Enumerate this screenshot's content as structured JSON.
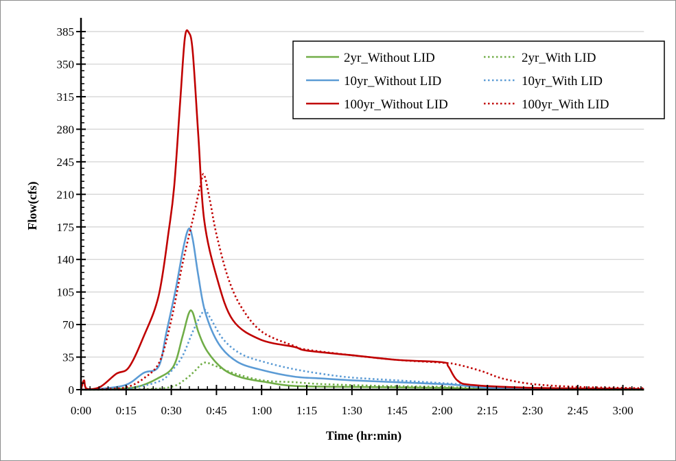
{
  "chart_data": {
    "type": "line",
    "title": "",
    "xlabel": "Time (hr:min)",
    "ylabel": "Flow(cfs)",
    "x_unit": "minutes",
    "xlim": [
      0,
      187
    ],
    "ylim": [
      0,
      385
    ],
    "x_ticks": [
      0,
      15,
      30,
      45,
      60,
      75,
      90,
      105,
      120,
      135,
      150,
      165,
      180
    ],
    "x_tick_labels": [
      "0:00",
      "0:15",
      "0:30",
      "0:45",
      "1:00",
      "1:15",
      "1:30",
      "1:45",
      "2:00",
      "2:15",
      "2:30",
      "2:45",
      "3:00"
    ],
    "y_ticks": [
      0,
      35,
      70,
      105,
      140,
      175,
      210,
      245,
      280,
      315,
      350,
      385
    ],
    "y_tick_labels": [
      "0",
      "35",
      "70",
      "105",
      "140",
      "175",
      "210",
      "245",
      "280",
      "315",
      "350",
      "385"
    ],
    "grid": "horizontal",
    "legend_placement": "top-right",
    "series": [
      {
        "name": "2yr_Without LID",
        "color": "#70ad47",
        "style": "solid",
        "points": [
          [
            0,
            0
          ],
          [
            10,
            0.5
          ],
          [
            18.6,
            3
          ],
          [
            25.4,
            12
          ],
          [
            30.7,
            25
          ],
          [
            33.7,
            57
          ],
          [
            35.8,
            82
          ],
          [
            37.1,
            83
          ],
          [
            39,
            62
          ],
          [
            42,
            41
          ],
          [
            47.3,
            22
          ],
          [
            53.4,
            13
          ],
          [
            61.7,
            8
          ],
          [
            70.8,
            4
          ],
          [
            90,
            3
          ],
          [
            120,
            2
          ],
          [
            130,
            1
          ],
          [
            150,
            0.3
          ],
          [
            187,
            0
          ]
        ]
      },
      {
        "name": "2yr_With LID",
        "color": "#70ad47",
        "style": "dotted",
        "points": [
          [
            0,
            0
          ],
          [
            20,
            0.5
          ],
          [
            30,
            3
          ],
          [
            35,
            12
          ],
          [
            38.1,
            21
          ],
          [
            40.9,
            29
          ],
          [
            44.3,
            26
          ],
          [
            50.4,
            18
          ],
          [
            60.2,
            10
          ],
          [
            70.8,
            8
          ],
          [
            80,
            6
          ],
          [
            100,
            4
          ],
          [
            120,
            3
          ],
          [
            135,
            1
          ],
          [
            150,
            0.3
          ],
          [
            187,
            0
          ]
        ]
      },
      {
        "name": "10yr_Without LID",
        "color": "#5b9bd5",
        "style": "solid",
        "points": [
          [
            0,
            0
          ],
          [
            5,
            0.5
          ],
          [
            14.8,
            5
          ],
          [
            20.8,
            18
          ],
          [
            25.8,
            25
          ],
          [
            28.4,
            62
          ],
          [
            31.4,
            107
          ],
          [
            34.1,
            154
          ],
          [
            35.8,
            173
          ],
          [
            37.1,
            162
          ],
          [
            39,
            122
          ],
          [
            41.3,
            83
          ],
          [
            45.8,
            49
          ],
          [
            51.9,
            30
          ],
          [
            60.2,
            21
          ],
          [
            70.8,
            14
          ],
          [
            80,
            12
          ],
          [
            90,
            10
          ],
          [
            105,
            8
          ],
          [
            120,
            6
          ],
          [
            125,
            5
          ],
          [
            135,
            2
          ],
          [
            150,
            1
          ],
          [
            187,
            0.5
          ]
        ]
      },
      {
        "name": "10yr_With LID",
        "color": "#5b9bd5",
        "style": "dotted",
        "points": [
          [
            0,
            0
          ],
          [
            14.8,
            1
          ],
          [
            26,
            9
          ],
          [
            30,
            20
          ],
          [
            33.7,
            36
          ],
          [
            37.5,
            65
          ],
          [
            40.9,
            85
          ],
          [
            42.8,
            78
          ],
          [
            47.3,
            54
          ],
          [
            53.4,
            38
          ],
          [
            61.7,
            29
          ],
          [
            70.8,
            22
          ],
          [
            80,
            17
          ],
          [
            90,
            13
          ],
          [
            105,
            10
          ],
          [
            120,
            7
          ],
          [
            125,
            6
          ],
          [
            135,
            3
          ],
          [
            150,
            1
          ],
          [
            187,
            0.5
          ]
        ]
      },
      {
        "name": "100yr_Without LID",
        "color": "#c00000",
        "style": "solid",
        "points": [
          [
            0,
            0
          ],
          [
            1,
            10
          ],
          [
            1.9,
            1
          ],
          [
            6.4,
            3
          ],
          [
            11.7,
            17
          ],
          [
            15.9,
            24
          ],
          [
            20.8,
            57
          ],
          [
            25.8,
            101
          ],
          [
            29.2,
            172
          ],
          [
            31,
            220
          ],
          [
            33,
            312
          ],
          [
            34.5,
            378
          ],
          [
            35.8,
            384
          ],
          [
            37.1,
            364
          ],
          [
            39,
            272
          ],
          [
            40.9,
            183
          ],
          [
            45,
            122
          ],
          [
            50.4,
            75
          ],
          [
            59.5,
            54
          ],
          [
            70.8,
            46
          ],
          [
            75,
            42
          ],
          [
            90,
            37
          ],
          [
            105,
            32
          ],
          [
            120,
            29.5
          ],
          [
            122,
            25
          ],
          [
            125,
            10
          ],
          [
            130,
            5
          ],
          [
            150,
            2
          ],
          [
            180,
            1
          ],
          [
            187,
            0.5
          ]
        ]
      },
      {
        "name": "100yr_With LID",
        "color": "#c00000",
        "style": "dotted",
        "points": [
          [
            0,
            0
          ],
          [
            10,
            1
          ],
          [
            15.5,
            3
          ],
          [
            20.8,
            12
          ],
          [
            26.1,
            30
          ],
          [
            30,
            75
          ],
          [
            33.7,
            135
          ],
          [
            37.5,
            188
          ],
          [
            39.8,
            222
          ],
          [
            40.9,
            231
          ],
          [
            42.8,
            204
          ],
          [
            45,
            167
          ],
          [
            48.9,
            120
          ],
          [
            53.4,
            88
          ],
          [
            60.2,
            62
          ],
          [
            70.8,
            47
          ],
          [
            75,
            43
          ],
          [
            90,
            37
          ],
          [
            105,
            32
          ],
          [
            120,
            29
          ],
          [
            125,
            27
          ],
          [
            133,
            20
          ],
          [
            140,
            12
          ],
          [
            150,
            6
          ],
          [
            165,
            3
          ],
          [
            180,
            2
          ],
          [
            187,
            1.5
          ]
        ]
      }
    ]
  }
}
